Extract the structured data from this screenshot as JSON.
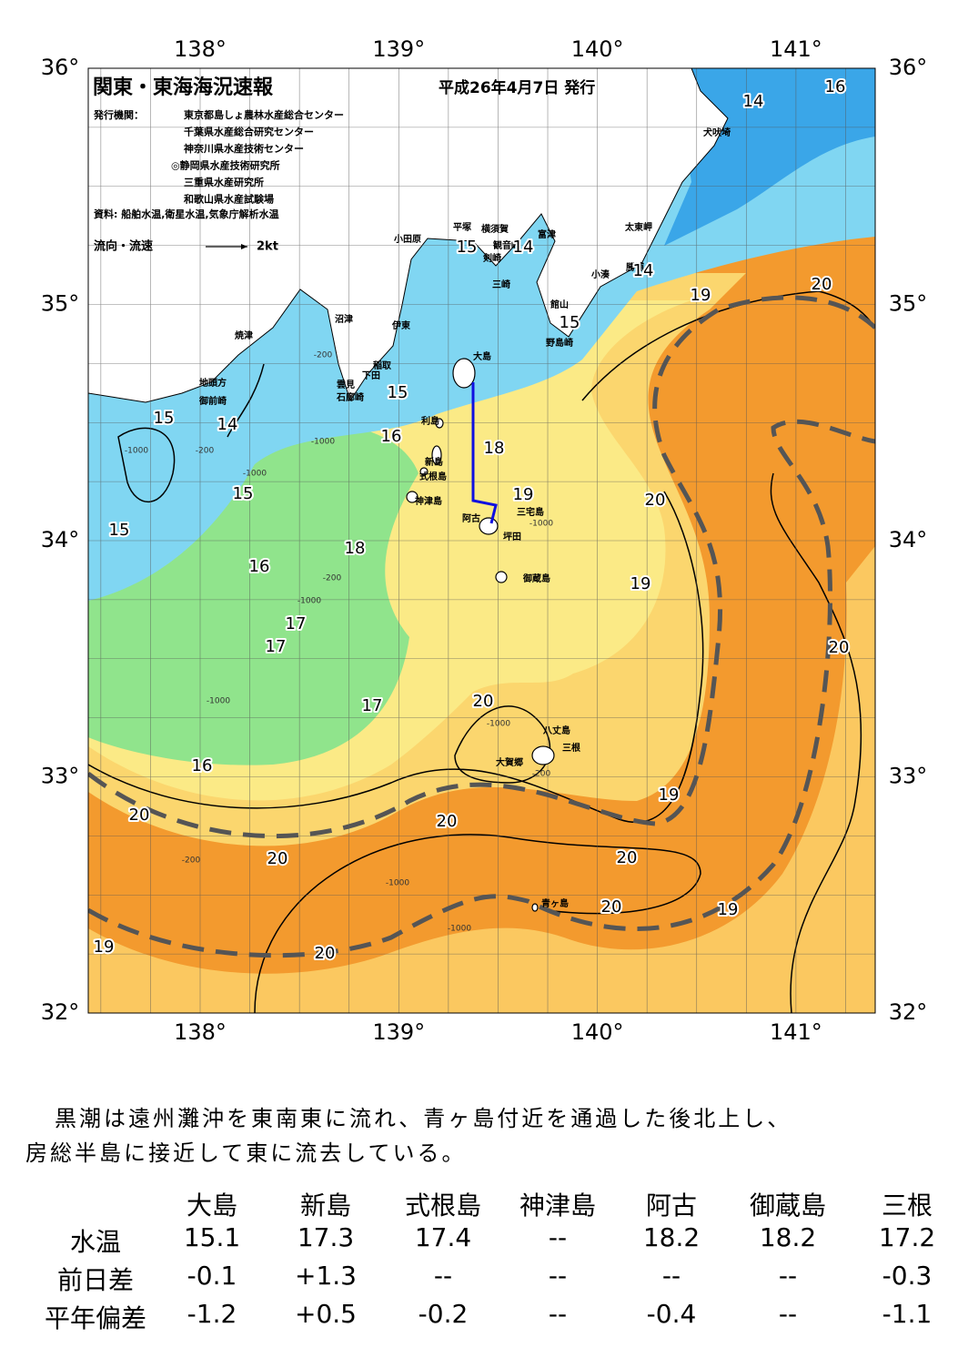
{
  "map": {
    "title": "関東・東海海況速報",
    "issued": "平成26年4月7日 発行",
    "publisher_label": "発行機関：",
    "publishers": [
      "東京都島しょ農林水産総合センター",
      "千葉県水産総合研究センター",
      "神奈川県水産技術センター",
      "◎静岡県水産技術研究所",
      "三重県水産研究所",
      "和歌山県水産試験場"
    ],
    "source": "資料: 船舶水温,衛星水温,気象庁解析水温",
    "legend_label": "流向・流速",
    "legend_speed": "2kt",
    "lon_labels": [
      "138°",
      "139°",
      "140°",
      "141°"
    ],
    "lat_labels": [
      "36°",
      "35°",
      "34°",
      "33°",
      "32°"
    ],
    "places": [
      "大島",
      "利島",
      "新島",
      "式根島",
      "神津島",
      "阿古",
      "三宅島",
      "坪田",
      "御蔵島",
      "八丈島",
      "三根",
      "大賀郷",
      "青ヶ島",
      "小田原",
      "平塚",
      "横須賀",
      "観音崎",
      "剣崎",
      "富津",
      "三崎",
      "館山",
      "野島崎",
      "小湊",
      "勝浦",
      "太東岬",
      "犬吠埼",
      "沼津",
      "伊東",
      "焼津",
      "稲取",
      "下田",
      "雲見",
      "石廊崎",
      "地頭方",
      "御前崎"
    ],
    "isotherm_labels": [
      "14",
      "16",
      "15",
      "14",
      "14",
      "19",
      "20",
      "15",
      "15",
      "16",
      "18",
      "19",
      "15",
      "14",
      "15",
      "15",
      "16",
      "18",
      "17",
      "17",
      "17",
      "20",
      "16",
      "20",
      "19",
      "20",
      "19",
      "20",
      "20",
      "20",
      "20",
      "20",
      "19",
      "19",
      "20"
    ],
    "depth_labels": [
      "-1000",
      "-200",
      "-1000",
      "-200",
      "-1000",
      "-200",
      "-1000",
      "-1000",
      "-1000",
      "-200",
      "-1000",
      "-1000",
      "-1000",
      "-200"
    ]
  },
  "summary": [
    "黒潮は遠州灘沖を東南東に流れ、青ヶ島付近を通過した後北上し、",
    "房総半島に接近して東に流去している。"
  ],
  "table": {
    "header": [
      "大島",
      "新島",
      "式根島",
      "神津島",
      "阿古",
      "御蔵島",
      "三根"
    ],
    "rows": [
      [
        "水温",
        "15.1",
        "17.3",
        "17.4",
        "--",
        "18.2",
        "18.2",
        "17.2"
      ],
      [
        "前日差",
        "-0.1",
        "+1.3",
        "--",
        "--",
        "--",
        "--",
        "-0.3"
      ],
      [
        "平年偏差",
        "-1.2",
        "+0.5",
        "-0.2",
        "--",
        "-0.4",
        "--",
        "-1.1"
      ]
    ]
  }
}
